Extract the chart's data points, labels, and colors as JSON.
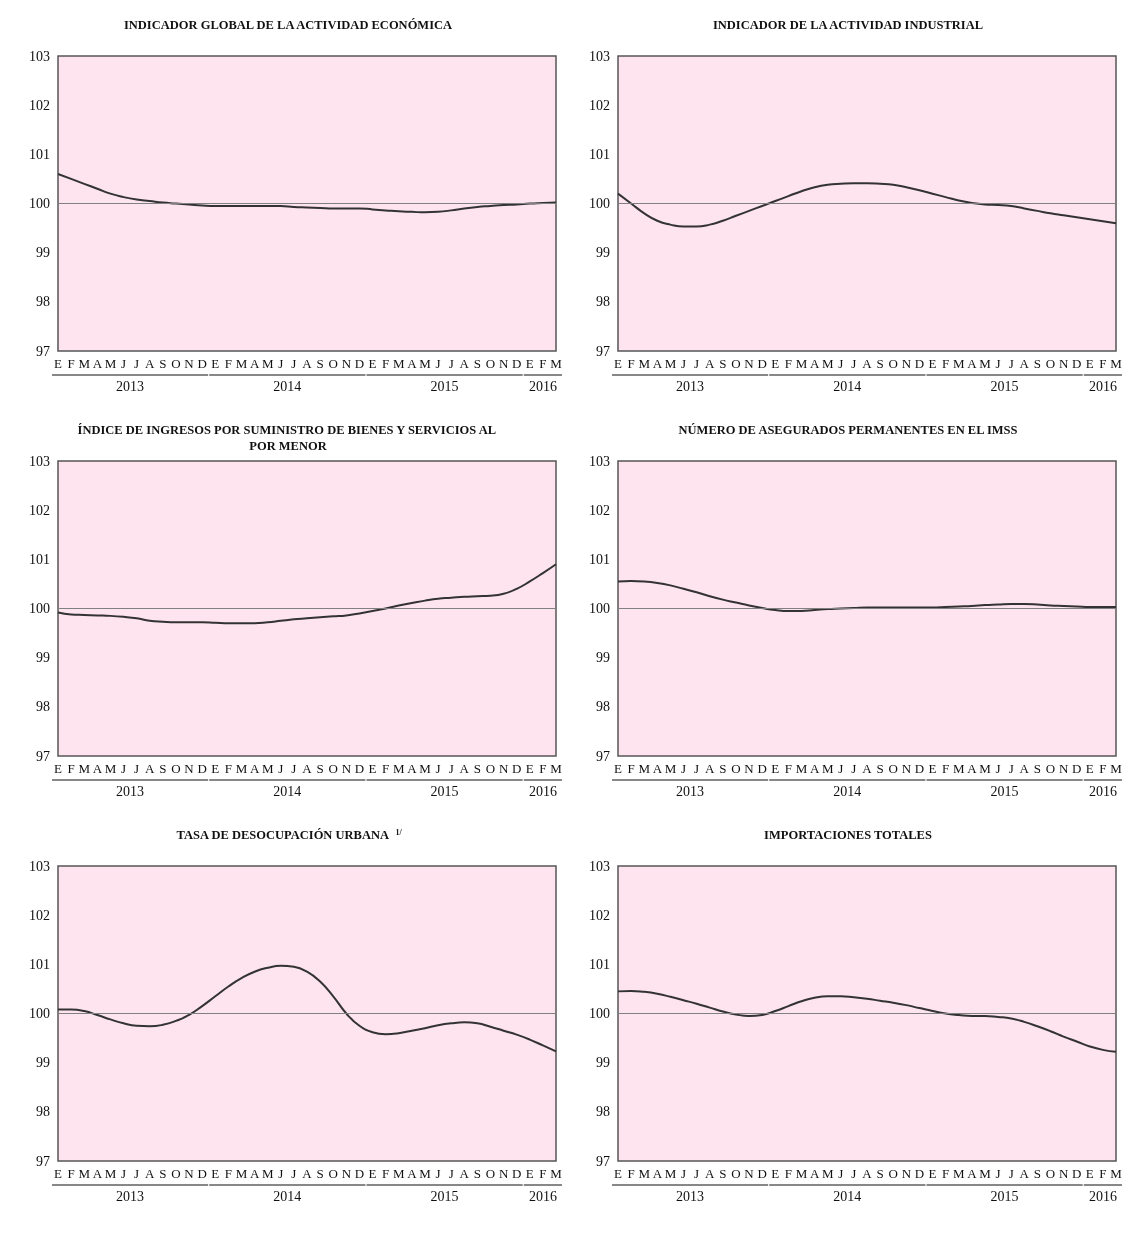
{
  "chart_data": [
    {
      "type": "line",
      "title": "INDICADOR GLOBAL DE LA ACTIVIDAD ECONÓMICA",
      "categories": [
        "E",
        "F",
        "M",
        "A",
        "M",
        "J",
        "J",
        "A",
        "S",
        "O",
        "N",
        "D",
        "E",
        "F",
        "M",
        "A",
        "M",
        "J",
        "J",
        "A",
        "S",
        "O",
        "N",
        "D",
        "E",
        "F",
        "M",
        "A",
        "M",
        "J",
        "J",
        "A",
        "S",
        "O",
        "N",
        "D",
        "E",
        "F",
        "M"
      ],
      "annotations": [
        "2013",
        "2014",
        "2015",
        "2016"
      ],
      "color": "#333333",
      "ylim": [
        97,
        103
      ],
      "yticks": [
        97,
        98,
        99,
        100,
        101,
        102,
        103
      ],
      "ref_lines": [
        {
          "axis": "y",
          "value": 100,
          "color": "#808080"
        }
      ],
      "values": [
        100.6,
        100.5,
        100.4,
        100.3,
        100.2,
        100.13,
        100.08,
        100.05,
        100.02,
        100.0,
        99.98,
        99.96,
        99.95,
        99.95,
        99.95,
        99.95,
        99.95,
        99.95,
        99.93,
        99.92,
        99.91,
        99.9,
        99.9,
        99.9,
        99.88,
        99.86,
        99.84,
        99.83,
        99.82,
        99.83,
        99.86,
        99.9,
        99.93,
        99.95,
        99.97,
        99.98,
        100.0,
        100.01,
        100.02
      ]
    },
    {
      "type": "line",
      "title": "INDICADOR DE LA ACTIVIDAD INDUSTRIAL",
      "categories": [
        "E",
        "F",
        "M",
        "A",
        "M",
        "J",
        "J",
        "A",
        "S",
        "O",
        "N",
        "D",
        "E",
        "F",
        "M",
        "A",
        "M",
        "J",
        "J",
        "A",
        "S",
        "O",
        "N",
        "D",
        "E",
        "F",
        "M",
        "A",
        "M",
        "J",
        "J",
        "A",
        "S",
        "O",
        "N",
        "D",
        "E",
        "F",
        "M"
      ],
      "annotations": [
        "2013",
        "2014",
        "2015",
        "2016"
      ],
      "color": "#333333",
      "ylim": [
        97,
        103
      ],
      "yticks": [
        97,
        98,
        99,
        100,
        101,
        102,
        103
      ],
      "ref_lines": [
        {
          "axis": "y",
          "value": 100,
          "color": "#808080"
        }
      ],
      "values": [
        100.2,
        100.0,
        99.8,
        99.65,
        99.57,
        99.53,
        99.53,
        99.57,
        99.65,
        99.75,
        99.85,
        99.95,
        100.05,
        100.15,
        100.25,
        100.33,
        100.38,
        100.4,
        100.41,
        100.41,
        100.4,
        100.38,
        100.33,
        100.27,
        100.2,
        100.13,
        100.06,
        100.01,
        99.98,
        99.97,
        99.95,
        99.9,
        99.85,
        99.8,
        99.76,
        99.72,
        99.68,
        99.64,
        99.6
      ]
    },
    {
      "type": "line",
      "title": "ÍNDICE DE INGRESOS POR SUMINISTRO DE BIENES Y SERVICIOS AL POR MENOR",
      "categories": [
        "E",
        "F",
        "M",
        "A",
        "M",
        "J",
        "J",
        "A",
        "S",
        "O",
        "N",
        "D",
        "E",
        "F",
        "M",
        "A",
        "M",
        "J",
        "J",
        "A",
        "S",
        "O",
        "N",
        "D",
        "E",
        "F",
        "M",
        "A",
        "M",
        "J",
        "J",
        "A",
        "S",
        "O",
        "N",
        "D",
        "E",
        "F",
        "M"
      ],
      "annotations": [
        "2013",
        "2014",
        "2015",
        "2016"
      ],
      "color": "#333333",
      "ylim": [
        97,
        103
      ],
      "yticks": [
        97,
        98,
        99,
        100,
        101,
        102,
        103
      ],
      "ref_lines": [
        {
          "axis": "y",
          "value": 100,
          "color": "#808080"
        }
      ],
      "values": [
        99.92,
        99.88,
        99.87,
        99.86,
        99.85,
        99.83,
        99.8,
        99.75,
        99.73,
        99.72,
        99.72,
        99.72,
        99.71,
        99.7,
        99.7,
        99.7,
        99.72,
        99.75,
        99.78,
        99.8,
        99.82,
        99.84,
        99.86,
        99.9,
        99.95,
        100.0,
        100.06,
        100.11,
        100.16,
        100.2,
        100.22,
        100.24,
        100.25,
        100.26,
        100.3,
        100.4,
        100.55,
        100.72,
        100.9
      ]
    },
    {
      "type": "line",
      "title": "NÚMERO DE ASEGURADOS PERMANENTES EN EL IMSS",
      "categories": [
        "E",
        "F",
        "M",
        "A",
        "M",
        "J",
        "J",
        "A",
        "S",
        "O",
        "N",
        "D",
        "E",
        "F",
        "M",
        "A",
        "M",
        "J",
        "J",
        "A",
        "S",
        "O",
        "N",
        "D",
        "E",
        "F",
        "M",
        "A",
        "M",
        "J",
        "J",
        "A",
        "S",
        "O",
        "N",
        "D",
        "E",
        "F",
        "M"
      ],
      "annotations": [
        "2013",
        "2014",
        "2015",
        "2016"
      ],
      "color": "#333333",
      "ylim": [
        97,
        103
      ],
      "yticks": [
        97,
        98,
        99,
        100,
        101,
        102,
        103
      ],
      "ref_lines": [
        {
          "axis": "y",
          "value": 100,
          "color": "#808080"
        }
      ],
      "values": [
        100.55,
        100.56,
        100.55,
        100.52,
        100.47,
        100.4,
        100.33,
        100.25,
        100.18,
        100.12,
        100.06,
        100.01,
        99.97,
        99.95,
        99.95,
        99.97,
        99.99,
        100.0,
        100.01,
        100.02,
        100.02,
        100.02,
        100.02,
        100.02,
        100.02,
        100.03,
        100.04,
        100.05,
        100.07,
        100.08,
        100.09,
        100.09,
        100.08,
        100.06,
        100.05,
        100.04,
        100.03,
        100.03,
        100.03
      ]
    },
    {
      "type": "line",
      "title": "TASA DE DESOCUPACIÓN URBANA $^{1/}$",
      "categories": [
        "E",
        "F",
        "M",
        "A",
        "M",
        "J",
        "J",
        "A",
        "S",
        "O",
        "N",
        "D",
        "E",
        "F",
        "M",
        "A",
        "M",
        "J",
        "J",
        "A",
        "S",
        "O",
        "N",
        "D",
        "E",
        "F",
        "M",
        "A",
        "M",
        "J",
        "J",
        "A",
        "S",
        "O",
        "N",
        "D",
        "E",
        "F",
        "M"
      ],
      "annotations": [
        "2013",
        "2014",
        "2015",
        "2016"
      ],
      "color": "#333333",
      "ylim": [
        97,
        103
      ],
      "yticks": [
        97,
        98,
        99,
        100,
        101,
        102,
        103
      ],
      "ref_lines": [
        {
          "axis": "y",
          "value": 100,
          "color": "#808080"
        }
      ],
      "values": [
        100.08,
        100.08,
        100.05,
        99.97,
        99.88,
        99.8,
        99.75,
        99.74,
        99.77,
        99.85,
        99.97,
        100.15,
        100.35,
        100.55,
        100.72,
        100.85,
        100.93,
        100.97,
        100.95,
        100.85,
        100.65,
        100.35,
        100.0,
        99.75,
        99.62,
        99.58,
        99.6,
        99.65,
        99.7,
        99.76,
        99.8,
        99.82,
        99.8,
        99.73,
        99.65,
        99.57,
        99.47,
        99.35,
        99.23
      ]
    },
    {
      "type": "line",
      "title": "IMPORTACIONES TOTALES",
      "categories": [
        "E",
        "F",
        "M",
        "A",
        "M",
        "J",
        "J",
        "A",
        "S",
        "O",
        "N",
        "D",
        "E",
        "F",
        "M",
        "A",
        "M",
        "J",
        "J",
        "A",
        "S",
        "O",
        "N",
        "D",
        "E",
        "F",
        "M",
        "A",
        "M",
        "J",
        "J",
        "A",
        "S",
        "O",
        "N",
        "D",
        "E",
        "F",
        "M"
      ],
      "annotations": [
        "2013",
        "2014",
        "2015",
        "2016"
      ],
      "color": "#333333",
      "ylim": [
        97,
        103
      ],
      "yticks": [
        97,
        98,
        99,
        100,
        101,
        102,
        103
      ],
      "ref_lines": [
        {
          "axis": "y",
          "value": 100,
          "color": "#808080"
        }
      ],
      "values": [
        100.45,
        100.46,
        100.44,
        100.4,
        100.34,
        100.27,
        100.2,
        100.12,
        100.04,
        99.98,
        99.95,
        99.97,
        100.05,
        100.15,
        100.25,
        100.32,
        100.35,
        100.35,
        100.33,
        100.3,
        100.26,
        100.22,
        100.17,
        100.11,
        100.05,
        100.0,
        99.97,
        99.95,
        99.95,
        99.93,
        99.9,
        99.83,
        99.74,
        99.64,
        99.53,
        99.43,
        99.33,
        99.26,
        99.22
      ]
    }
  ]
}
